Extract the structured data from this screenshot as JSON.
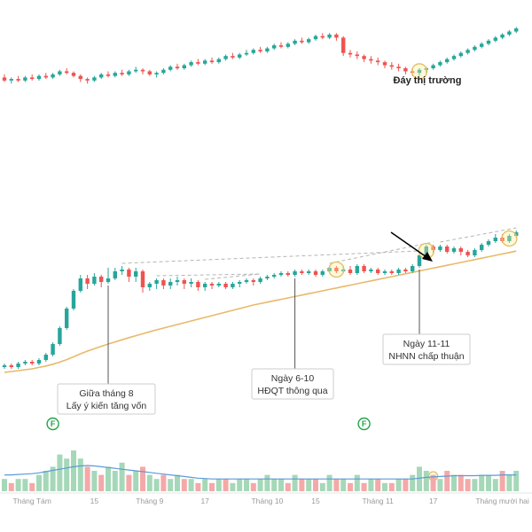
{
  "chart_data": {
    "type": "candlestick",
    "colors": {
      "up": "#26a69a",
      "down": "#ef5350",
      "ma_line": "#e8b96a",
      "vol_ma_line": "#5b9bd5",
      "vol_up": "#a5d8b8",
      "vol_down": "#f4a9a8",
      "trend_dash": "#b5b5b5",
      "circle": "#e0c060",
      "event_marker": "#22a44a",
      "arrow": "#000000"
    },
    "x_ticks": [
      {
        "label": "Tháng Tám",
        "i": 4
      },
      {
        "label": "15",
        "i": 13
      },
      {
        "label": "Tháng 9",
        "i": 21
      },
      {
        "label": "17",
        "i": 29
      },
      {
        "label": "Tháng 10",
        "i": 38
      },
      {
        "label": "15",
        "i": 45
      },
      {
        "label": "Tháng 11",
        "i": 54
      },
      {
        "label": "17",
        "i": 62
      },
      {
        "label": "Tháng mười hai",
        "i": 72
      }
    ],
    "annotations": [
      {
        "lines": [
          "Giữa tháng 8",
          "Lấy ý kiến tăng vốn"
        ],
        "i": 15
      },
      {
        "lines": [
          "Ngày 6-10",
          "HĐQT thông qua"
        ],
        "i": 42
      },
      {
        "lines": [
          "Ngày 11-11",
          "NHNN chấp thuận"
        ],
        "i": 60
      },
      {
        "lines": [
          "Đáy thị trường"
        ],
        "i": 59,
        "panel": "top"
      }
    ],
    "event_markers": [
      {
        "label": "F",
        "i": 7
      },
      {
        "label": "F",
        "i": 52
      }
    ],
    "top_panel": {
      "ohlc": [
        [
          86,
          84,
          88,
          83
        ],
        [
          84,
          85,
          86,
          82
        ],
        [
          85,
          84,
          87,
          83
        ],
        [
          84,
          86,
          87,
          83
        ],
        [
          86,
          85,
          88,
          84
        ],
        [
          85,
          87,
          88,
          84
        ],
        [
          87,
          86,
          89,
          85
        ],
        [
          86,
          88,
          89,
          85
        ],
        [
          88,
          90,
          91,
          87
        ],
        [
          90,
          89,
          92,
          88
        ],
        [
          89,
          87,
          90,
          86
        ],
        [
          87,
          85,
          88,
          83
        ],
        [
          85,
          84,
          86,
          82
        ],
        [
          84,
          86,
          87,
          83
        ],
        [
          86,
          88,
          89,
          85
        ],
        [
          88,
          87,
          90,
          86
        ],
        [
          87,
          89,
          90,
          86
        ],
        [
          89,
          88,
          91,
          87
        ],
        [
          88,
          90,
          91,
          87
        ],
        [
          90,
          91,
          93,
          89
        ],
        [
          91,
          90,
          92,
          88
        ],
        [
          90,
          88,
          91,
          87
        ],
        [
          88,
          89,
          90,
          86
        ],
        [
          89,
          91,
          92,
          88
        ],
        [
          91,
          93,
          94,
          90
        ],
        [
          93,
          92,
          95,
          91
        ],
        [
          92,
          94,
          95,
          91
        ],
        [
          94,
          96,
          97,
          93
        ],
        [
          96,
          95,
          98,
          94
        ],
        [
          95,
          97,
          98,
          94
        ],
        [
          97,
          96,
          99,
          95
        ],
        [
          96,
          98,
          99,
          95
        ],
        [
          98,
          100,
          101,
          97
        ],
        [
          100,
          99,
          102,
          98
        ],
        [
          99,
          101,
          102,
          98
        ],
        [
          101,
          102,
          104,
          100
        ],
        [
          102,
          104,
          105,
          101
        ],
        [
          104,
          103,
          106,
          102
        ],
        [
          103,
          105,
          106,
          102
        ],
        [
          105,
          107,
          108,
          104
        ],
        [
          107,
          106,
          109,
          105
        ],
        [
          106,
          108,
          109,
          105
        ],
        [
          108,
          110,
          111,
          107
        ],
        [
          110,
          109,
          112,
          108
        ],
        [
          109,
          111,
          112,
          108
        ],
        [
          111,
          113,
          114,
          110
        ],
        [
          113,
          112,
          115,
          111
        ],
        [
          112,
          114,
          115,
          111
        ],
        [
          114,
          112,
          115,
          110
        ],
        [
          112,
          102,
          113,
          100
        ],
        [
          102,
          101,
          104,
          99
        ],
        [
          101,
          100,
          103,
          98
        ],
        [
          100,
          98,
          101,
          96
        ],
        [
          98,
          97,
          100,
          95
        ],
        [
          97,
          96,
          99,
          94
        ],
        [
          96,
          94,
          97,
          92
        ],
        [
          94,
          93,
          96,
          91
        ],
        [
          93,
          92,
          95,
          90
        ],
        [
          92,
          90,
          93,
          88
        ],
        [
          90,
          89,
          92,
          87
        ],
        [
          89,
          91,
          92,
          87
        ],
        [
          91,
          92,
          93,
          89
        ],
        [
          92,
          94,
          95,
          91
        ],
        [
          94,
          96,
          97,
          93
        ],
        [
          96,
          98,
          99,
          95
        ],
        [
          98,
          100,
          101,
          97
        ],
        [
          100,
          102,
          103,
          99
        ],
        [
          102,
          104,
          105,
          101
        ],
        [
          104,
          106,
          107,
          103
        ],
        [
          106,
          108,
          109,
          105
        ],
        [
          108,
          110,
          111,
          107
        ],
        [
          110,
          112,
          113,
          109
        ],
        [
          112,
          114,
          115,
          111
        ],
        [
          114,
          116,
          117,
          113
        ],
        [
          116,
          118,
          119,
          115
        ]
      ],
      "ylim": [
        70,
        125
      ]
    },
    "main_panel": {
      "ohlc": [
        [
          12.8,
          12.9,
          13.0,
          12.7
        ],
        [
          12.9,
          12.8,
          13.0,
          12.7
        ],
        [
          12.8,
          13.0,
          13.1,
          12.7
        ],
        [
          13.0,
          13.1,
          13.2,
          12.9
        ],
        [
          13.1,
          13.0,
          13.2,
          12.9
        ],
        [
          13.0,
          13.2,
          13.3,
          12.9
        ],
        [
          13.2,
          13.5,
          13.6,
          13.1
        ],
        [
          13.5,
          14.1,
          14.2,
          13.4
        ],
        [
          14.1,
          15.0,
          15.1,
          14.0
        ],
        [
          15.0,
          16.1,
          16.2,
          14.9
        ],
        [
          16.1,
          17.1,
          17.2,
          16.0
        ],
        [
          17.1,
          17.8,
          18.0,
          17.0
        ],
        [
          17.8,
          17.5,
          18.0,
          17.2
        ],
        [
          17.5,
          17.9,
          18.1,
          17.4
        ],
        [
          17.9,
          17.6,
          18.0,
          17.3
        ],
        [
          17.6,
          17.8,
          18.4,
          17.5
        ],
        [
          17.8,
          18.2,
          18.4,
          17.7
        ],
        [
          18.2,
          18.3,
          18.5,
          18.0
        ],
        [
          18.3,
          17.9,
          18.4,
          17.6
        ],
        [
          17.9,
          18.2,
          18.4,
          17.6
        ],
        [
          18.2,
          17.3,
          18.3,
          17.0
        ],
        [
          17.3,
          17.5,
          17.6,
          17.1
        ],
        [
          17.5,
          17.7,
          17.8,
          17.2
        ],
        [
          17.7,
          17.4,
          17.8,
          17.2
        ],
        [
          17.4,
          17.6,
          17.8,
          17.2
        ],
        [
          17.6,
          17.7,
          17.9,
          17.4
        ],
        [
          17.7,
          17.5,
          17.8,
          17.2
        ],
        [
          17.5,
          17.6,
          17.8,
          17.3
        ],
        [
          17.6,
          17.3,
          17.7,
          17.1
        ],
        [
          17.3,
          17.5,
          17.6,
          17.1
        ],
        [
          17.5,
          17.4,
          17.6,
          17.2
        ],
        [
          17.4,
          17.5,
          17.6,
          17.3
        ],
        [
          17.5,
          17.3,
          17.6,
          17.2
        ],
        [
          17.3,
          17.5,
          17.6,
          17.2
        ],
        [
          17.5,
          17.6,
          17.7,
          17.3
        ],
        [
          17.6,
          17.7,
          17.8,
          17.5
        ],
        [
          17.7,
          17.6,
          17.8,
          17.4
        ],
        [
          17.6,
          17.8,
          17.9,
          17.5
        ],
        [
          17.8,
          17.9,
          18.0,
          17.7
        ],
        [
          17.9,
          18.0,
          18.1,
          17.8
        ],
        [
          18.0,
          18.1,
          18.2,
          17.9
        ],
        [
          18.1,
          18.0,
          18.2,
          17.9
        ],
        [
          18.0,
          18.2,
          18.3,
          17.9
        ],
        [
          18.2,
          18.1,
          18.3,
          18.0
        ],
        [
          18.1,
          18.2,
          18.3,
          18.0
        ],
        [
          18.2,
          18.0,
          18.3,
          17.9
        ],
        [
          18.0,
          18.2,
          18.3,
          17.9
        ],
        [
          18.2,
          18.4,
          18.5,
          18.1
        ],
        [
          18.4,
          18.2,
          18.5,
          18.1
        ],
        [
          18.2,
          18.3,
          18.5,
          18.1
        ],
        [
          18.3,
          18.1,
          18.5,
          18.0
        ],
        [
          18.1,
          18.5,
          18.6,
          18.0
        ],
        [
          18.5,
          18.2,
          18.6,
          18.1
        ],
        [
          18.2,
          18.3,
          18.4,
          18.1
        ],
        [
          18.3,
          18.1,
          18.4,
          18.0
        ],
        [
          18.1,
          18.2,
          18.3,
          18.0
        ],
        [
          18.2,
          18.1,
          18.3,
          18.0
        ],
        [
          18.1,
          18.3,
          18.4,
          18.0
        ],
        [
          18.3,
          18.2,
          18.4,
          18.1
        ],
        [
          18.2,
          18.5,
          18.6,
          18.1
        ],
        [
          18.5,
          19.1,
          19.2,
          18.4
        ],
        [
          19.1,
          19.6,
          19.7,
          19.0
        ],
        [
          19.6,
          19.4,
          19.7,
          19.2
        ],
        [
          19.4,
          19.6,
          19.7,
          19.3
        ],
        [
          19.6,
          19.3,
          19.7,
          19.2
        ],
        [
          19.3,
          19.5,
          19.6,
          19.2
        ],
        [
          19.5,
          19.3,
          19.6,
          19.1
        ],
        [
          19.3,
          19.1,
          19.4,
          19.0
        ],
        [
          19.1,
          19.4,
          19.5,
          19.0
        ],
        [
          19.4,
          19.7,
          19.8,
          19.3
        ],
        [
          19.7,
          19.9,
          20.0,
          19.6
        ],
        [
          19.9,
          20.1,
          20.3,
          19.8
        ],
        [
          20.1,
          19.9,
          20.3,
          19.8
        ],
        [
          19.9,
          20.2,
          20.3,
          19.8
        ],
        [
          20.2,
          20.4,
          20.5,
          20.1
        ]
      ],
      "ma": [
        12.5,
        12.55,
        12.6,
        12.65,
        12.7,
        12.78,
        12.86,
        12.96,
        13.08,
        13.22,
        13.38,
        13.55,
        13.7,
        13.84,
        13.97,
        14.1,
        14.22,
        14.34,
        14.46,
        14.57,
        14.68,
        14.79,
        14.9,
        15.0,
        15.1,
        15.2,
        15.3,
        15.4,
        15.5,
        15.6,
        15.7,
        15.8,
        15.9,
        16.0,
        16.1,
        16.2,
        16.3,
        16.38,
        16.46,
        16.54,
        16.62,
        16.7,
        16.78,
        16.86,
        16.94,
        17.02,
        17.1,
        17.18,
        17.26,
        17.34,
        17.42,
        17.5,
        17.58,
        17.66,
        17.74,
        17.82,
        17.9,
        17.98,
        18.06,
        18.14,
        18.22,
        18.3,
        18.38,
        18.46,
        18.54,
        18.62,
        18.7,
        18.78,
        18.86,
        18.94,
        19.02,
        19.1,
        19.18,
        19.26,
        19.34
      ],
      "ylim": [
        11.5,
        21.5
      ]
    },
    "volume": [
      3,
      2,
      3,
      3,
      2,
      4,
      5,
      6,
      9,
      8,
      10,
      8,
      6,
      5,
      4,
      6,
      5,
      7,
      4,
      5,
      6,
      4,
      3,
      4,
      3,
      4,
      3,
      3,
      2,
      3,
      2,
      3,
      3,
      2,
      3,
      3,
      2,
      3,
      4,
      3,
      3,
      2,
      4,
      3,
      3,
      3,
      2,
      4,
      3,
      3,
      2,
      4,
      2,
      3,
      3,
      2,
      2,
      3,
      3,
      4,
      6,
      5,
      4,
      3,
      5,
      4,
      4,
      3,
      3,
      4,
      4,
      3,
      5,
      4,
      5
    ],
    "volume_ma": [
      4,
      4,
      4.1,
      4.2,
      4.3,
      4.5,
      4.8,
      5.1,
      5.4,
      5.7,
      6,
      6.2,
      6.3,
      6.2,
      6,
      5.8,
      5.6,
      5.4,
      5.2,
      5,
      4.8,
      4.6,
      4.4,
      4.2,
      4,
      3.8,
      3.6,
      3.4,
      3.2,
      3.1,
      3,
      3,
      3,
      3,
      3,
      3,
      3,
      3,
      3,
      3,
      3,
      3,
      3,
      3,
      3,
      3,
      3,
      3,
      3,
      3,
      3,
      3,
      3,
      3,
      3,
      3,
      3,
      3,
      3,
      3,
      3.2,
      3.4,
      3.5,
      3.6,
      3.7,
      3.8,
      3.8,
      3.8,
      3.8,
      3.9,
      3.9,
      3.9,
      4,
      4,
      4
    ]
  }
}
